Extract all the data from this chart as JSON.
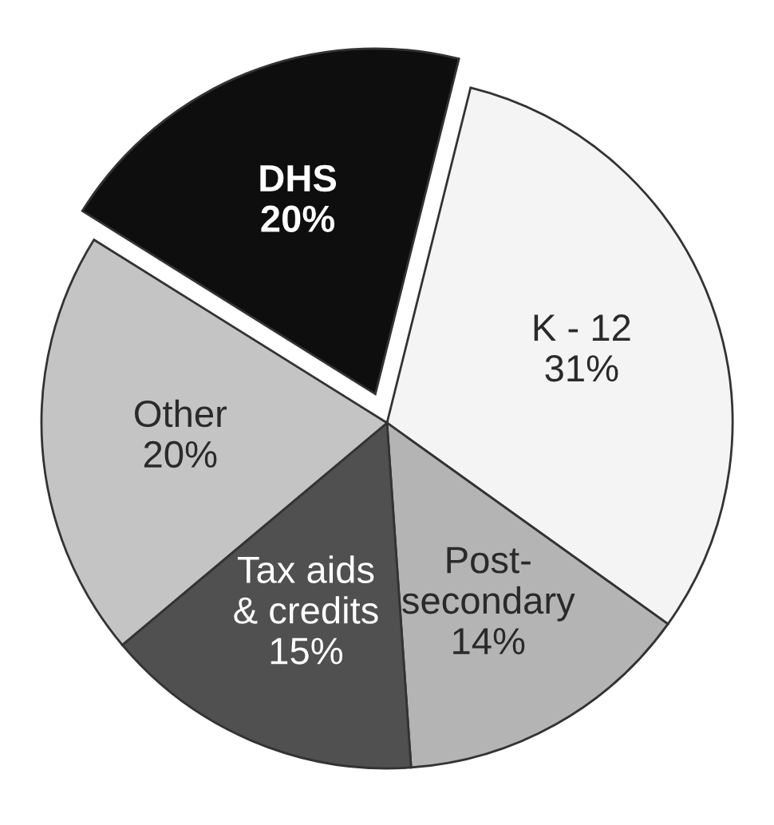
{
  "chart_data": {
    "type": "pie",
    "categories": [
      "K - 12",
      "Post-\nsecondary",
      "Tax aids\n& credits",
      "Other",
      "DHS"
    ],
    "values": [
      31,
      14,
      15,
      20,
      20
    ],
    "value_labels": [
      "31%",
      "14%",
      "15%",
      "20%",
      "20%"
    ],
    "colors": [
      "#f4f4f4",
      "#b4b4b4",
      "#505050",
      "#c4c4c4",
      "#0e0e0e"
    ],
    "legend": false
  }
}
